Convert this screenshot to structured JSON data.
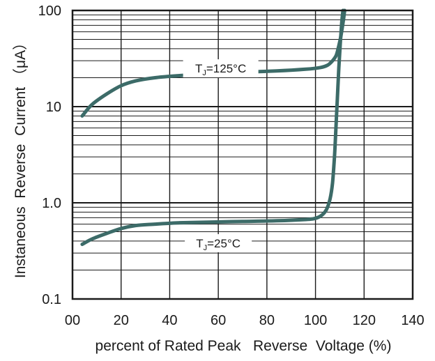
{
  "chart_data": {
    "type": "line",
    "xlabel": "percent of Rated Peak   Reverse  Voltage (%)",
    "ylabel": "Instaneous  Reverse  Current （μA）",
    "xlim": [
      0,
      140
    ],
    "ylim": [
      0.1,
      100
    ],
    "yscale": "log",
    "grid": true,
    "x_ticks": [
      "00",
      "20",
      "40",
      "60",
      "80",
      "100",
      "120",
      "140"
    ],
    "x_tick_values": [
      0,
      20,
      40,
      60,
      80,
      100,
      120,
      140
    ],
    "y_ticks": [
      "100",
      "10",
      "1.0",
      "0.1"
    ],
    "y_tick_values": [
      100,
      10,
      1,
      0.1
    ],
    "colors": {
      "curve": "#3c6b68",
      "grid": "#1a1a1a",
      "axis": "#1a1a1a"
    },
    "series": [
      {
        "label_main": "T",
        "label_sub": "J",
        "label_rest": "=125°C",
        "x": [
          4,
          8,
          14,
          20,
          26,
          34,
          44,
          56,
          70,
          84,
          96,
          102,
          105,
          107,
          108.5,
          109.5,
          110.5,
          111.5,
          112
        ],
        "y": [
          8,
          10.5,
          13.5,
          16.5,
          18.5,
          20,
          21,
          22,
          22.8,
          23.5,
          24.5,
          25.5,
          27,
          30,
          34,
          42,
          55,
          80,
          100
        ]
      },
      {
        "label_main": "T",
        "label_sub": "J",
        "label_rest": "=25°C",
        "x": [
          4,
          8,
          14,
          20,
          26,
          34,
          44,
          56,
          70,
          84,
          96,
          100,
          102.5,
          104.5,
          106,
          107,
          107.8,
          108.4,
          109,
          109.6,
          110.2,
          110.8,
          111.3
        ],
        "y": [
          0.37,
          0.42,
          0.48,
          0.54,
          0.58,
          0.6,
          0.62,
          0.63,
          0.64,
          0.65,
          0.67,
          0.69,
          0.74,
          0.85,
          1.1,
          1.6,
          3,
          6,
          12,
          25,
          45,
          75,
          100
        ]
      }
    ]
  }
}
